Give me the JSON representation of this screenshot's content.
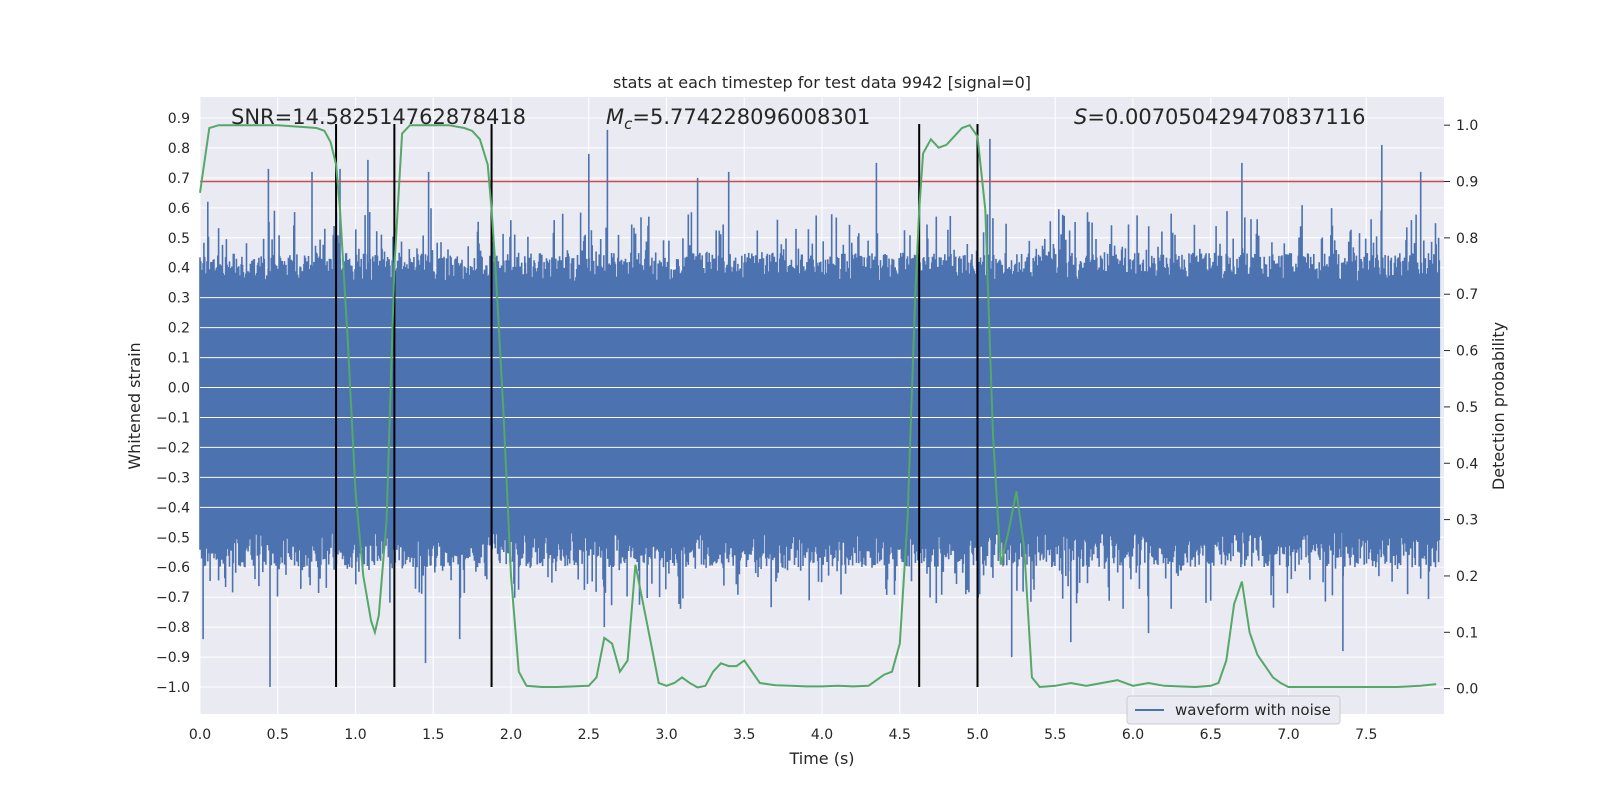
{
  "chart_data": {
    "type": "line",
    "title": "stats at each timestep for test data 9942 [signal=0]",
    "xlabel": "Time (s)",
    "ylabel": "Whitened strain",
    "ylabel_right": "Detection probability",
    "xlim": [
      0.0,
      8.0
    ],
    "ylim": [
      -1.09,
      0.97
    ],
    "ylim_right": [
      -0.045,
      1.05
    ],
    "x_ticks": [
      0.0,
      0.5,
      1.0,
      1.5,
      2.0,
      2.5,
      3.0,
      3.5,
      4.0,
      4.5,
      5.0,
      5.5,
      6.0,
      6.5,
      7.0,
      7.5
    ],
    "x_tick_labels": [
      "0.0",
      "0.5",
      "1.0",
      "1.5",
      "2.0",
      "2.5",
      "3.0",
      "3.5",
      "4.0",
      "4.5",
      "5.0",
      "5.5",
      "6.0",
      "6.5",
      "7.0",
      "7.5"
    ],
    "y_ticks": [
      0.9,
      0.8,
      0.7,
      0.6,
      0.5,
      0.4,
      0.3,
      0.2,
      0.1,
      0.0,
      -0.1,
      -0.2,
      -0.3,
      -0.4,
      -0.5,
      -0.6,
      -0.7,
      -0.8,
      -0.9,
      -1.0
    ],
    "y_tick_labels": [
      "0.9",
      "0.8",
      "0.7",
      "0.6",
      "0.5",
      "0.4",
      "0.3",
      "0.2",
      "0.1",
      "0.0",
      "−0.1",
      "−0.2",
      "−0.3",
      "−0.4",
      "−0.5",
      "−0.6",
      "−0.7",
      "−0.8",
      "−0.9",
      "−1.0"
    ],
    "y_right_ticks": [
      1.0,
      0.9,
      0.8,
      0.7,
      0.6,
      0.5,
      0.4,
      0.3,
      0.2,
      0.1,
      0.0
    ],
    "y_right_tick_labels": [
      "1.0",
      "0.9",
      "0.8",
      "0.7",
      "0.6",
      "0.5",
      "0.4",
      "0.3",
      "0.2",
      "0.1",
      "0.0"
    ],
    "annotations": {
      "snr": "SNR=14.582514762878418",
      "mc_symbol": "M",
      "mc_sub": "c",
      "mc_value": "=5.774228096008301",
      "s_symbol": "S",
      "s_value": "=0.007050429470837116"
    },
    "legend": {
      "label": "waveform with noise",
      "placement": "lower-right"
    },
    "grid": true,
    "threshold": {
      "value": 0.9,
      "axis": "right"
    },
    "vertical_lines_x": [
      0.875,
      1.25,
      1.875,
      4.625,
      5.0
    ],
    "vertical_lines_yrange": [
      -1.0,
      0.88
    ],
    "waveform": {
      "name": "waveform with noise",
      "t_range": [
        0.0,
        7.97
      ],
      "band_upper": 0.32,
      "band_lower": -0.44,
      "dense_upper": 0.45,
      "dense_lower": -0.6,
      "peaks": [
        {
          "t": 0.02,
          "y": -0.84
        },
        {
          "t": 0.05,
          "y": 0.62
        },
        {
          "t": 0.45,
          "y": -1.0
        },
        {
          "t": 0.44,
          "y": 0.73
        },
        {
          "t": 0.72,
          "y": 0.72
        },
        {
          "t": 0.9,
          "y": 0.73
        },
        {
          "t": 1.08,
          "y": 0.76
        },
        {
          "t": 1.45,
          "y": -0.92
        },
        {
          "t": 1.47,
          "y": 0.72
        },
        {
          "t": 1.67,
          "y": -0.84
        },
        {
          "t": 2.62,
          "y": 0.86
        },
        {
          "t": 2.6,
          "y": -0.8
        },
        {
          "t": 2.5,
          "y": 0.78
        },
        {
          "t": 3.2,
          "y": 0.7
        },
        {
          "t": 3.4,
          "y": 0.72
        },
        {
          "t": 4.35,
          "y": 0.75
        },
        {
          "t": 5.08,
          "y": 0.83
        },
        {
          "t": 5.22,
          "y": -0.9
        },
        {
          "t": 5.6,
          "y": -0.85
        },
        {
          "t": 6.1,
          "y": -0.82
        },
        {
          "t": 6.7,
          "y": 0.75
        },
        {
          "t": 7.35,
          "y": -0.88
        },
        {
          "t": 7.6,
          "y": 0.81
        },
        {
          "t": 7.85,
          "y": 0.72
        }
      ]
    },
    "detection_probability": {
      "t": [
        0.0,
        0.06,
        0.12,
        0.25,
        0.5,
        0.75,
        0.8,
        0.84,
        0.875,
        0.9,
        0.95,
        1.0,
        1.05,
        1.1,
        1.125,
        1.15,
        1.2,
        1.25,
        1.3,
        1.35,
        1.4,
        1.5,
        1.6,
        1.7,
        1.75,
        1.8,
        1.85,
        1.875,
        1.9,
        1.95,
        2.0,
        2.05,
        2.1,
        2.2,
        2.3,
        2.4,
        2.5,
        2.55,
        2.6,
        2.65,
        2.7,
        2.75,
        2.8,
        2.85,
        2.9,
        2.95,
        3.0,
        3.05,
        3.1,
        3.15,
        3.2,
        3.25,
        3.3,
        3.35,
        3.4,
        3.45,
        3.5,
        3.55,
        3.6,
        3.65,
        3.7,
        3.8,
        3.9,
        4.0,
        4.1,
        4.2,
        4.3,
        4.35,
        4.4,
        4.45,
        4.5,
        4.55,
        4.6,
        4.625,
        4.65,
        4.7,
        4.75,
        4.8,
        4.85,
        4.9,
        4.95,
        5.0,
        5.05,
        5.1,
        5.15,
        5.2,
        5.25,
        5.3,
        5.35,
        5.4,
        5.5,
        5.6,
        5.7,
        5.8,
        5.9,
        6.0,
        6.1,
        6.2,
        6.3,
        6.4,
        6.5,
        6.55,
        6.6,
        6.65,
        6.7,
        6.75,
        6.8,
        6.85,
        6.9,
        6.95,
        7.0,
        7.2,
        7.4,
        7.5,
        7.7,
        7.85,
        7.95
      ],
      "p": [
        0.88,
        0.995,
        1.0,
        1.0,
        1.0,
        0.995,
        0.99,
        0.97,
        0.93,
        0.85,
        0.62,
        0.35,
        0.2,
        0.12,
        0.1,
        0.13,
        0.3,
        0.75,
        0.985,
        1.0,
        1.0,
        1.0,
        1.0,
        0.995,
        0.99,
        0.975,
        0.93,
        0.85,
        0.75,
        0.5,
        0.2,
        0.03,
        0.005,
        0.003,
        0.003,
        0.004,
        0.005,
        0.02,
        0.09,
        0.08,
        0.03,
        0.05,
        0.22,
        0.15,
        0.08,
        0.01,
        0.005,
        0.01,
        0.02,
        0.01,
        0.002,
        0.005,
        0.03,
        0.045,
        0.04,
        0.04,
        0.05,
        0.03,
        0.01,
        0.008,
        0.006,
        0.005,
        0.004,
        0.004,
        0.005,
        0.004,
        0.005,
        0.015,
        0.025,
        0.03,
        0.08,
        0.3,
        0.7,
        0.85,
        0.95,
        0.975,
        0.96,
        0.965,
        0.98,
        0.995,
        1.0,
        0.98,
        0.85,
        0.45,
        0.22,
        0.28,
        0.35,
        0.25,
        0.02,
        0.003,
        0.005,
        0.01,
        0.005,
        0.01,
        0.015,
        0.005,
        0.01,
        0.005,
        0.004,
        0.003,
        0.005,
        0.01,
        0.05,
        0.15,
        0.19,
        0.1,
        0.06,
        0.04,
        0.02,
        0.01,
        0.003,
        0.003,
        0.003,
        0.003,
        0.003,
        0.005,
        0.008
      ]
    },
    "colors": {
      "waveform": "#4c72b0",
      "probability": "#55a868",
      "threshold": "#c44e52",
      "vlines": "#000000",
      "plot_bg": "#eaeaf2",
      "grid": "#ffffff"
    }
  }
}
